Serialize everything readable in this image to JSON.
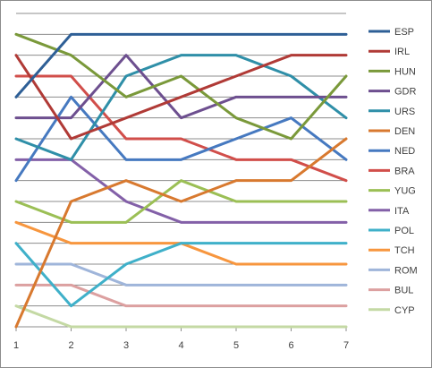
{
  "chart_data": {
    "type": "line",
    "title": "",
    "xlabel": "",
    "ylabel": "",
    "x": [
      1,
      2,
      3,
      4,
      5,
      6,
      7
    ],
    "ylim": [
      1,
      15
    ],
    "y_inverted": true,
    "y_tick_labels_shown": false,
    "grid": "horizontal",
    "legend_position": "right",
    "series": [
      {
        "name": "ESP",
        "color": "#2e5f96",
        "values": [
          4,
          1,
          1,
          1,
          1,
          1,
          1
        ]
      },
      {
        "name": "IRL",
        "color": "#b03a36",
        "values": [
          2,
          6,
          5,
          4,
          3,
          2,
          2
        ]
      },
      {
        "name": "HUN",
        "color": "#7a993a",
        "values": [
          1,
          2,
          4,
          3,
          5,
          6,
          3
        ]
      },
      {
        "name": "GDR",
        "color": "#6d4f8f",
        "values": [
          5,
          5,
          2,
          5,
          4,
          4,
          4
        ]
      },
      {
        "name": "URS",
        "color": "#2f8fa8",
        "values": [
          6,
          7,
          3,
          2,
          2,
          3,
          5
        ]
      },
      {
        "name": "DEN",
        "color": "#d8792f",
        "values": [
          15,
          9,
          8,
          9,
          8,
          8,
          6
        ]
      },
      {
        "name": "NED",
        "color": "#4679c0",
        "values": [
          8,
          4,
          7,
          7,
          6,
          5,
          7
        ]
      },
      {
        "name": "BRA",
        "color": "#d14e4a",
        "values": [
          3,
          3,
          6,
          6,
          7,
          7,
          8
        ]
      },
      {
        "name": "YUG",
        "color": "#9bbf55",
        "values": [
          9,
          10,
          10,
          8,
          9,
          9,
          9
        ]
      },
      {
        "name": "ITA",
        "color": "#8360a8",
        "values": [
          7,
          7,
          9,
          10,
          10,
          10,
          10
        ]
      },
      {
        "name": "POL",
        "color": "#3fb0c9",
        "values": [
          11,
          14,
          12,
          11,
          11,
          11,
          11
        ]
      },
      {
        "name": "TCH",
        "color": "#f7963e",
        "values": [
          10,
          11,
          11,
          11,
          12,
          12,
          12
        ]
      },
      {
        "name": "ROM",
        "color": "#9fb5da",
        "values": [
          12,
          12,
          13,
          13,
          13,
          13,
          13
        ]
      },
      {
        "name": "BUL",
        "color": "#dca0a0",
        "values": [
          13,
          13,
          14,
          14,
          14,
          14,
          14
        ]
      },
      {
        "name": "CYP",
        "color": "#c4d9a4",
        "values": [
          14,
          15,
          15,
          15,
          15,
          15,
          15
        ]
      }
    ]
  }
}
